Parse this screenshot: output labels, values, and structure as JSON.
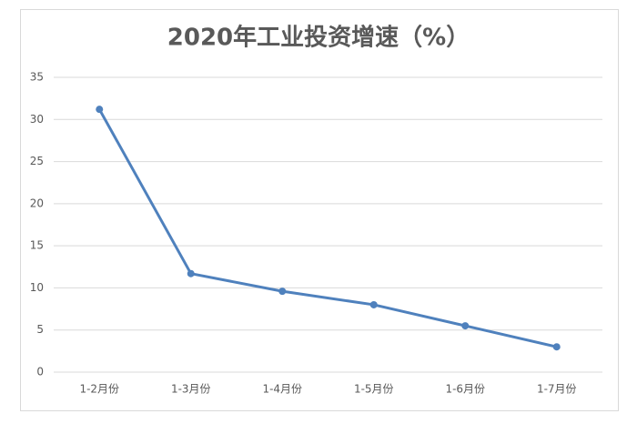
{
  "chart_data": {
    "type": "line",
    "title": "2020年工业投资增速（%）",
    "categories": [
      "1-2月份",
      "1-3月份",
      "1-4月份",
      "1-5月份",
      "1-6月份",
      "1-7月份"
    ],
    "values": [
      31.2,
      11.7,
      9.6,
      8.0,
      5.5,
      3.0
    ],
    "color": "#4f81bd",
    "ylim": [
      0,
      35
    ],
    "yticks": [
      0,
      5,
      10,
      15,
      20,
      25,
      30,
      35
    ],
    "grid": true
  }
}
